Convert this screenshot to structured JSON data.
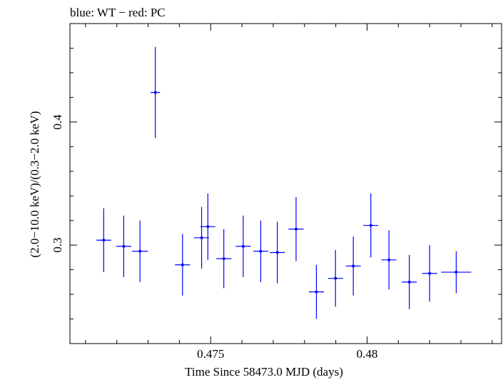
{
  "chart_data": {
    "type": "scatter",
    "title": "blue: WT − red: PC",
    "xlabel": "Time Since 58473.0 MJD (days)",
    "ylabel": "(2.0−10.0 keV)/(0.3−2.0 keV)",
    "xlim": [
      0.4705,
      0.4843
    ],
    "ylim": [
      0.22,
      0.48
    ],
    "x_ticks": [
      0.475,
      0.48
    ],
    "x_tick_labels": [
      "0.475",
      "0.48"
    ],
    "y_ticks": [
      0.3,
      0.4
    ],
    "y_tick_labels": [
      "0.3",
      "0.4"
    ],
    "grid": false,
    "series": [
      {
        "color": "#0000ff",
        "points": [
          {
            "x": 0.47158,
            "xerr": 0.00024,
            "y": 0.304,
            "yerr": 0.026
          },
          {
            "x": 0.47222,
            "xerr": 0.00024,
            "y": 0.299,
            "yerr": 0.025
          },
          {
            "x": 0.47274,
            "xerr": 0.00025,
            "y": 0.295,
            "yerr": 0.025
          },
          {
            "x": 0.47323,
            "xerr": 0.00015,
            "y": 0.424,
            "yerr": 0.037
          },
          {
            "x": 0.4741,
            "xerr": 0.00024,
            "y": 0.284,
            "yerr": 0.025
          },
          {
            "x": 0.47471,
            "xerr": 0.00024,
            "y": 0.306,
            "yerr": 0.025
          },
          {
            "x": 0.47491,
            "xerr": 0.00024,
            "y": 0.315,
            "yerr": 0.027
          },
          {
            "x": 0.47542,
            "xerr": 0.00024,
            "y": 0.289,
            "yerr": 0.024
          },
          {
            "x": 0.47604,
            "xerr": 0.00024,
            "y": 0.299,
            "yerr": 0.025
          },
          {
            "x": 0.4766,
            "xerr": 0.00024,
            "y": 0.295,
            "yerr": 0.025
          },
          {
            "x": 0.47713,
            "xerr": 0.00024,
            "y": 0.294,
            "yerr": 0.025
          },
          {
            "x": 0.47773,
            "xerr": 0.00024,
            "y": 0.313,
            "yerr": 0.026
          },
          {
            "x": 0.47838,
            "xerr": 0.00024,
            "y": 0.262,
            "yerr": 0.022
          },
          {
            "x": 0.47899,
            "xerr": 0.00024,
            "y": 0.273,
            "yerr": 0.023
          },
          {
            "x": 0.47956,
            "xerr": 0.00024,
            "y": 0.283,
            "yerr": 0.024
          },
          {
            "x": 0.48012,
            "xerr": 0.00024,
            "y": 0.316,
            "yerr": 0.026
          },
          {
            "x": 0.4807,
            "xerr": 0.00024,
            "y": 0.288,
            "yerr": 0.024
          },
          {
            "x": 0.48135,
            "xerr": 0.00024,
            "y": 0.27,
            "yerr": 0.022
          },
          {
            "x": 0.482,
            "xerr": 0.00024,
            "y": 0.277,
            "yerr": 0.023
          },
          {
            "x": 0.48285,
            "xerr": 0.00048,
            "y": 0.278,
            "yerr": 0.017
          }
        ]
      }
    ]
  }
}
